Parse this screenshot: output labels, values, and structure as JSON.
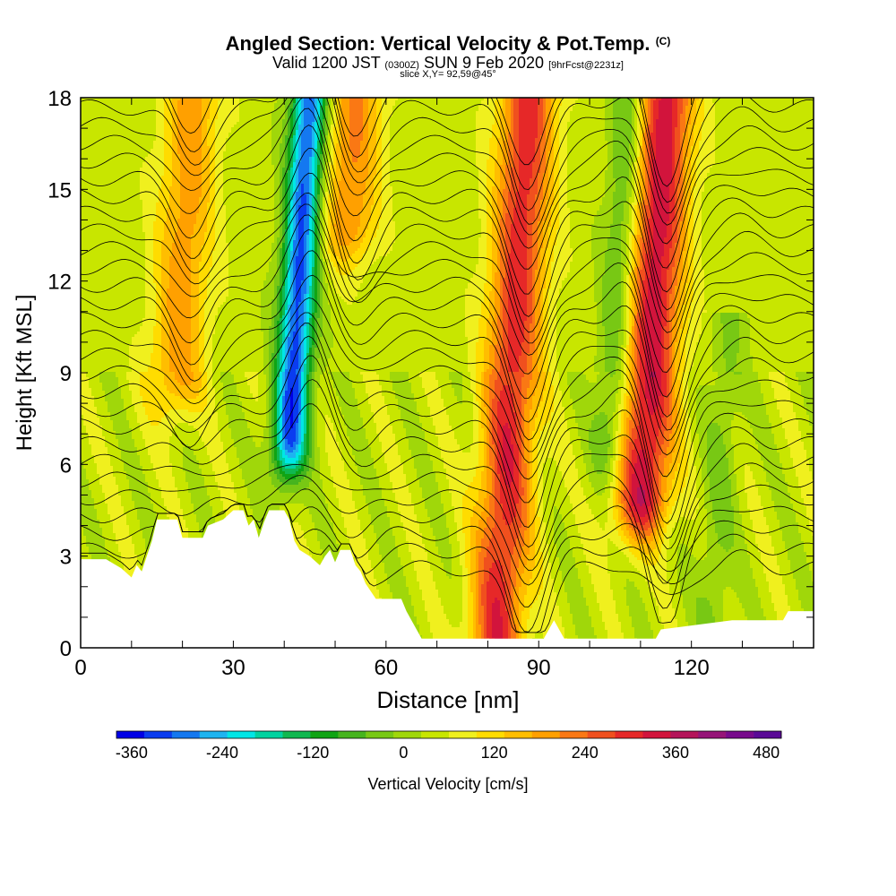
{
  "title": {
    "main": "Angled Section: Vertical Velocity & Pot.Temp.",
    "units_note": "(C)",
    "valid_prefix": "Valid 1200 JST",
    "valid_zulu": "(0300Z)",
    "valid_date": "SUN 9 Feb 2020",
    "forecast_tag": "[9hrFcst@2231z]",
    "slice": "slice X,Y= 92,59@45°"
  },
  "chart_data": {
    "type": "heatmap",
    "xlabel": "Distance [nm]",
    "ylabel": "Height [Kft MSL]",
    "xlim": [
      0,
      144
    ],
    "ylim": [
      0,
      18
    ],
    "x_ticks": [
      0,
      30,
      60,
      90,
      120
    ],
    "y_ticks": [
      0,
      3,
      6,
      9,
      12,
      15,
      18
    ],
    "colorbar": {
      "label": "Vertical Velocity [cm/s]",
      "range": [
        -380,
        500
      ],
      "ticks": [
        -360,
        -240,
        -120,
        0,
        120,
        240,
        360,
        480
      ],
      "colors": [
        "#0000e6",
        "#0a3cf0",
        "#1478f0",
        "#1eb4f0",
        "#00e6e6",
        "#00d2a0",
        "#10b850",
        "#10a414",
        "#46b41e",
        "#78c814",
        "#a0d70a",
        "#c8e600",
        "#f0f01e",
        "#ffdc00",
        "#ffbe00",
        "#ffa000",
        "#fa7814",
        "#f0501e",
        "#e62828",
        "#d2143c",
        "#b4145a",
        "#961478",
        "#780a8c",
        "#5a0a96"
      ]
    },
    "vertical_velocity_features": [
      {
        "type": "downdraft",
        "x": 45,
        "top_kft": 18,
        "bottom_kft": 7,
        "min_value": -360
      },
      {
        "type": "updraft",
        "x": 22,
        "top_kft": 18,
        "bottom_kft": 9,
        "max_value": 150
      },
      {
        "type": "updraft",
        "x": 54,
        "top_kft": 18,
        "bottom_kft": 14,
        "max_value": 170
      },
      {
        "type": "updraft",
        "x": 88,
        "top_kft": 18,
        "bottom_kft": 0.5,
        "max_value": 260
      },
      {
        "type": "updraft",
        "x": 115,
        "top_kft": 18,
        "bottom_kft": 5,
        "max_value": 300
      },
      {
        "type": "downdraft",
        "x": 108,
        "top_kft": 18,
        "bottom_kft": 7,
        "min_value": -120
      },
      {
        "type": "downdraft",
        "x": 130,
        "top_kft": 11,
        "bottom_kft": 0.5,
        "min_value": -60
      }
    ],
    "theta_contours_celsius": [
      -18,
      -16,
      -14,
      -12,
      -10,
      -8,
      -6,
      -4,
      -2,
      0,
      2,
      4,
      6,
      8,
      10,
      12,
      14,
      16,
      18,
      20,
      22,
      24,
      26,
      28,
      30,
      32,
      34,
      36,
      38
    ],
    "terrain_kft": [
      [
        0,
        2.9
      ],
      [
        3,
        2.9
      ],
      [
        5,
        2.9
      ],
      [
        8,
        2.6
      ],
      [
        10,
        2.3
      ],
      [
        11,
        2.7
      ],
      [
        12,
        2.5
      ],
      [
        13,
        3.0
      ],
      [
        14,
        3.5
      ],
      [
        15,
        4.2
      ],
      [
        19,
        4.2
      ],
      [
        20,
        3.6
      ],
      [
        24,
        3.6
      ],
      [
        25,
        4.0
      ],
      [
        28,
        4.2
      ],
      [
        30,
        4.5
      ],
      [
        32,
        4.5
      ],
      [
        33,
        4.0
      ],
      [
        34,
        4.2
      ],
      [
        35,
        3.6
      ],
      [
        36,
        4.1
      ],
      [
        37,
        4.5
      ],
      [
        40,
        4.5
      ],
      [
        41,
        4.2
      ],
      [
        42,
        3.5
      ],
      [
        43,
        3.2
      ],
      [
        45,
        3.0
      ],
      [
        47,
        2.7
      ],
      [
        48,
        3.0
      ],
      [
        49,
        3.2
      ],
      [
        50,
        2.8
      ],
      [
        51,
        3.2
      ],
      [
        53,
        3.2
      ],
      [
        54,
        2.7
      ],
      [
        55,
        2.5
      ],
      [
        56,
        2.1
      ],
      [
        58,
        1.6
      ],
      [
        60,
        1.6
      ],
      [
        63,
        1.6
      ],
      [
        64,
        1.2
      ],
      [
        65,
        0.9
      ],
      [
        66,
        0.6
      ],
      [
        67,
        0.3
      ],
      [
        91,
        0.3
      ],
      [
        92,
        0.6
      ],
      [
        93,
        0.9
      ],
      [
        94,
        0.6
      ],
      [
        95,
        0.3
      ],
      [
        113,
        0.3
      ],
      [
        114,
        0.6
      ],
      [
        128,
        0.9
      ],
      [
        138,
        0.9
      ],
      [
        139,
        1.2
      ],
      [
        144,
        1.2
      ]
    ]
  }
}
